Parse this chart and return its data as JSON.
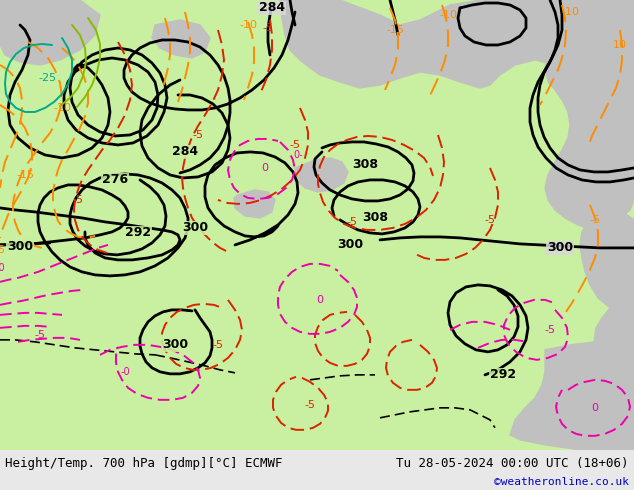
{
  "title_left": "Height/Temp. 700 hPa [gdmp][°C] ECMWF",
  "title_right": "Tu 28-05-2024 00:00 UTC (18+06)",
  "credit": "©weatheronline.co.uk",
  "bg_color": "#e0e0e0",
  "land_green_color": "#c8f0a0",
  "land_gray_color": "#c0c0c0",
  "sea_color": "#d8d8d8",
  "black": "#000000",
  "orange": "#ff8c00",
  "red": "#dd2200",
  "magenta": "#ee00aa",
  "teal": "#00aa88",
  "lime": "#88cc00",
  "credit_color": "#0000cc",
  "figsize": [
    6.34,
    4.9
  ],
  "dpi": 100
}
